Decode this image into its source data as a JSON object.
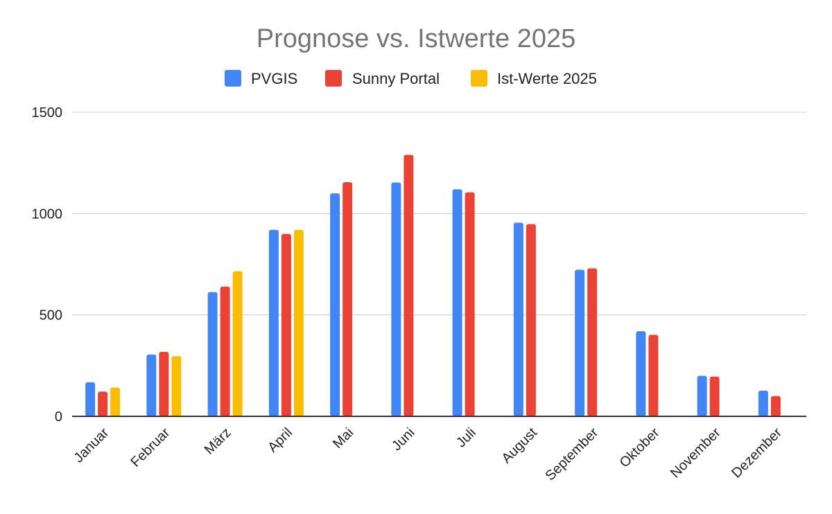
{
  "chart_data": {
    "type": "bar",
    "title": "Prognose vs. Istwerte 2025",
    "xlabel": "",
    "ylabel": "",
    "ylim": [
      0,
      1500
    ],
    "yticks": [
      0,
      500,
      1000,
      1500
    ],
    "grid": true,
    "legend_position": "top",
    "categories": [
      "Januar",
      "Februar",
      "März",
      "April",
      "Mai",
      "Juni",
      "Juli",
      "August",
      "September",
      "Oktober",
      "November",
      "Dezember"
    ],
    "series": [
      {
        "name": "PVGIS",
        "color": "#4285f4",
        "values": [
          168,
          305,
          613,
          920,
          1100,
          1153,
          1120,
          955,
          723,
          420,
          200,
          127
        ]
      },
      {
        "name": "Sunny Portal",
        "color": "#ea4335",
        "values": [
          122,
          318,
          640,
          900,
          1155,
          1290,
          1105,
          948,
          730,
          402,
          196,
          100
        ]
      },
      {
        "name": "Ist-Werte 2025",
        "color": "#fbbc04",
        "values": [
          142,
          297,
          716,
          920,
          null,
          null,
          null,
          null,
          null,
          null,
          null,
          null
        ]
      }
    ]
  }
}
